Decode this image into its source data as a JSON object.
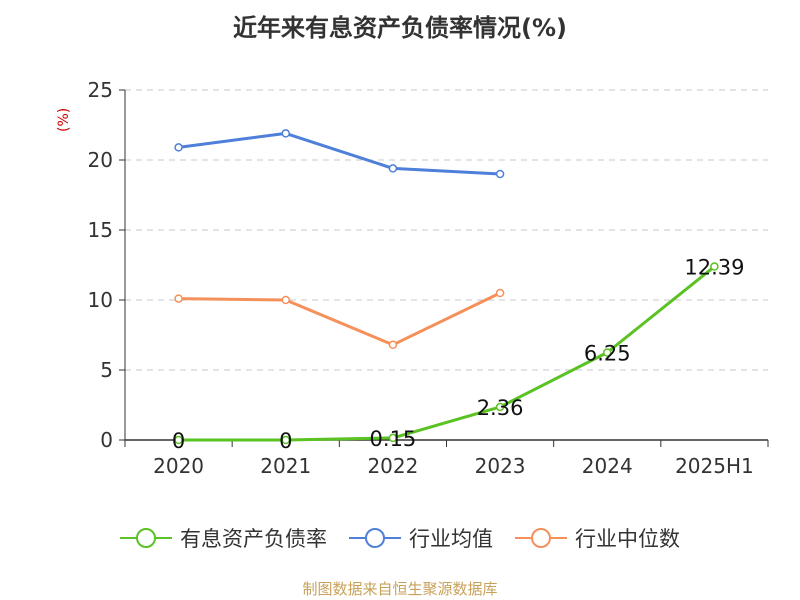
{
  "chart_data": {
    "type": "line",
    "title": "近年来有息资产负债率情况(%)",
    "ylabel": "(%)",
    "xlabel": "",
    "categories": [
      "2020",
      "2021",
      "2022",
      "2023",
      "2024",
      "2025H1"
    ],
    "ylim": [
      0,
      25
    ],
    "yticks": [
      0,
      5,
      10,
      15,
      20,
      25
    ],
    "grid": "horizontal dashed",
    "legend_position": "bottom",
    "series": [
      {
        "name": "有息资产负债率",
        "color": "#5ac223",
        "values": [
          0,
          0,
          0.15,
          2.36,
          6.25,
          12.39
        ],
        "data_labels": [
          "0",
          "0",
          "0.15",
          "2.36",
          "6.25",
          "12.39"
        ]
      },
      {
        "name": "行业均值",
        "color": "#4e7fd9",
        "values": [
          20.9,
          21.9,
          19.4,
          19.0,
          null,
          null
        ]
      },
      {
        "name": "行业中位数",
        "color": "#f5905a",
        "values": [
          10.1,
          10.0,
          6.8,
          10.5,
          null,
          null
        ]
      }
    ]
  },
  "source": "制图数据来自恒生聚源数据库"
}
